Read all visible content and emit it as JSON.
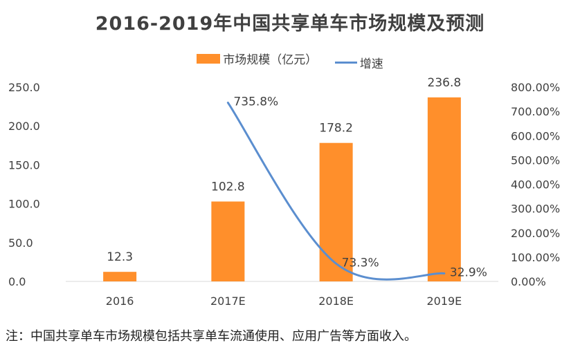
{
  "chart_data": {
    "type": "bar",
    "title": "2016-2019年中国共享单车市场规模及预测",
    "categories": [
      "2016",
      "2017E",
      "2018E",
      "2019E"
    ],
    "series": [
      {
        "name": "市场规模（亿元）",
        "kind": "bar",
        "axis": "left",
        "values": [
          12.3,
          102.8,
          178.2,
          236.8
        ],
        "labels": [
          "12.3",
          "102.8",
          "178.2",
          "236.8"
        ],
        "color": "#FF8F2B"
      },
      {
        "name": "增速",
        "kind": "line",
        "axis": "right",
        "values": [
          null,
          735.8,
          73.3,
          32.9
        ],
        "labels": [
          "",
          "735.8%",
          "73.3%",
          "32.9%"
        ],
        "color": "#5B8ECF"
      }
    ],
    "left_axis": {
      "ylim": [
        0,
        250
      ],
      "ticks": [
        "0.0",
        "50.0",
        "100.0",
        "150.0",
        "200.0",
        "250.0"
      ]
    },
    "right_axis": {
      "ylim": [
        0,
        800
      ],
      "ticks": [
        "0.00%",
        "100.00%",
        "200.00%",
        "300.00%",
        "400.00%",
        "500.00%",
        "600.00%",
        "700.00%",
        "800.00%"
      ]
    },
    "legend_position": "top-center",
    "grid": false
  },
  "footnote": "注：中国共享单车市场规模包括共享单车流通使用、应用广告等方面收入。",
  "colors": {
    "bar": "#FF8F2B",
    "line": "#5B8ECF",
    "text": "#404040"
  }
}
